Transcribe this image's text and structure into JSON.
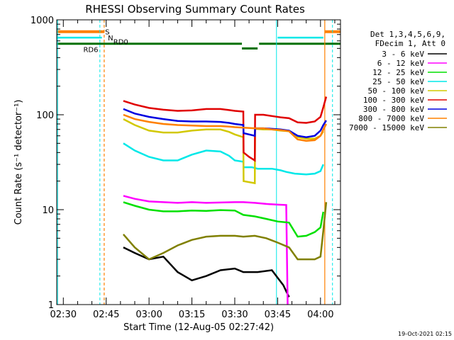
{
  "chart_data": {
    "type": "line",
    "title": "RHESSI Observing Summary Count Rates",
    "xlabel": "Start Time (12-Aug-05 02:27:42)",
    "ylabel": "Count Rate (s⁻¹ detector⁻¹)",
    "y_scale": "log",
    "ylim": [
      1,
      1000
    ],
    "y_ticks": [
      "1",
      "10",
      "100",
      "1000"
    ],
    "x_ticks": [
      "02:30",
      "02:45",
      "03:00",
      "03:15",
      "03:30",
      "03:45",
      "04:00"
    ],
    "x_tick_minutes": [
      150,
      165,
      180,
      195,
      210,
      225,
      240
    ],
    "xlim_minutes": [
      147.7,
      247
    ],
    "legend_header": [
      "Det 1,3,4,5,6,9,",
      "FDecim 1, Att 0"
    ],
    "legend_position": "right",
    "series": [
      {
        "name": "3 - 6 keV",
        "color": "#000000",
        "points": [
          [
            171,
            4
          ],
          [
            175,
            3.5
          ],
          [
            180,
            3
          ],
          [
            185,
            3.2
          ],
          [
            190,
            2.2
          ],
          [
            195,
            1.8
          ],
          [
            200,
            2
          ],
          [
            205,
            2.3
          ],
          [
            210,
            2.4
          ],
          [
            213,
            2.2
          ],
          [
            218,
            2.2
          ],
          [
            223,
            2.3
          ],
          [
            227,
            1.6
          ],
          [
            229,
            1.2
          ]
        ]
      },
      {
        "name": "6 - 12 keV",
        "color": "#ff00ff",
        "points": [
          [
            171,
            14
          ],
          [
            175,
            13
          ],
          [
            180,
            12.2
          ],
          [
            185,
            12
          ],
          [
            190,
            11.8
          ],
          [
            195,
            12
          ],
          [
            200,
            11.8
          ],
          [
            205,
            11.9
          ],
          [
            210,
            12
          ],
          [
            213,
            12
          ],
          [
            217,
            11.8
          ],
          [
            221,
            11.5
          ],
          [
            225,
            11.3
          ],
          [
            228,
            11.2
          ],
          [
            228.5,
            1
          ]
        ]
      },
      {
        "name": "12 - 25 keV",
        "color": "#00e000",
        "points": [
          [
            171,
            12
          ],
          [
            175,
            11
          ],
          [
            180,
            10
          ],
          [
            185,
            9.6
          ],
          [
            190,
            9.6
          ],
          [
            195,
            9.8
          ],
          [
            200,
            9.7
          ],
          [
            205,
            9.9
          ],
          [
            210,
            9.8
          ],
          [
            213,
            8.8
          ],
          [
            217,
            8.5
          ],
          [
            221,
            8
          ],
          [
            225,
            7.5
          ],
          [
            229,
            7.3
          ],
          [
            232,
            5.2
          ],
          [
            235,
            5.3
          ],
          [
            238,
            5.8
          ],
          [
            240,
            6.5
          ],
          [
            241,
            9.5
          ]
        ]
      },
      {
        "name": "25 - 50 keV",
        "color": "#00e8e8",
        "points": [
          [
            171,
            50
          ],
          [
            175,
            42
          ],
          [
            180,
            36
          ],
          [
            185,
            33
          ],
          [
            190,
            33
          ],
          [
            195,
            38
          ],
          [
            200,
            42
          ],
          [
            205,
            41
          ],
          [
            208,
            37
          ],
          [
            210,
            33
          ],
          [
            213,
            32
          ],
          [
            213.1,
            28
          ],
          [
            216,
            28
          ],
          [
            218,
            27
          ],
          [
            220,
            27
          ],
          [
            223,
            27
          ],
          [
            226,
            26
          ],
          [
            228,
            25
          ],
          [
            231,
            24
          ],
          [
            235,
            23.5
          ],
          [
            238,
            24
          ],
          [
            240,
            25.5
          ],
          [
            241,
            30
          ]
        ]
      },
      {
        "name": "50 - 100 keV",
        "color": "#d2c800",
        "points": [
          [
            171,
            90
          ],
          [
            175,
            78
          ],
          [
            180,
            68
          ],
          [
            185,
            65
          ],
          [
            190,
            65
          ],
          [
            195,
            68
          ],
          [
            200,
            70
          ],
          [
            205,
            70
          ],
          [
            208,
            66
          ],
          [
            210,
            62
          ],
          [
            213,
            58
          ],
          [
            213.1,
            20
          ],
          [
            217,
            19
          ],
          [
            217.1,
            71
          ],
          [
            220,
            70
          ],
          [
            223,
            70
          ],
          [
            226,
            68
          ],
          [
            229,
            67
          ],
          [
            232,
            58
          ],
          [
            235,
            56
          ],
          [
            238,
            56
          ],
          [
            240,
            60
          ],
          [
            241,
            67
          ]
        ]
      },
      {
        "name": "100 - 300 keV",
        "color": "#e00000",
        "points": [
          [
            171,
            140
          ],
          [
            175,
            128
          ],
          [
            180,
            118
          ],
          [
            185,
            113
          ],
          [
            190,
            110
          ],
          [
            195,
            111
          ],
          [
            200,
            115
          ],
          [
            205,
            115
          ],
          [
            208,
            112
          ],
          [
            210,
            110
          ],
          [
            213,
            108
          ],
          [
            213.1,
            40
          ],
          [
            215,
            36
          ],
          [
            217,
            33
          ],
          [
            217.1,
            100
          ],
          [
            220,
            100
          ],
          [
            223,
            97
          ],
          [
            226,
            94
          ],
          [
            229,
            92
          ],
          [
            232,
            83
          ],
          [
            235,
            82
          ],
          [
            238,
            85
          ],
          [
            240,
            95
          ],
          [
            241,
            120
          ],
          [
            242,
            155
          ]
        ]
      },
      {
        "name": "300 - 800 keV",
        "color": "#0000e0",
        "points": [
          [
            171,
            115
          ],
          [
            175,
            103
          ],
          [
            180,
            95
          ],
          [
            185,
            90
          ],
          [
            190,
            86
          ],
          [
            195,
            85
          ],
          [
            200,
            85
          ],
          [
            205,
            84
          ],
          [
            208,
            82
          ],
          [
            210,
            80
          ],
          [
            213,
            78
          ],
          [
            213.1,
            64
          ],
          [
            217,
            60
          ],
          [
            217.1,
            72
          ],
          [
            220,
            72
          ],
          [
            223,
            71
          ],
          [
            226,
            70
          ],
          [
            229,
            68
          ],
          [
            232,
            60
          ],
          [
            235,
            58
          ],
          [
            238,
            60
          ],
          [
            240,
            68
          ],
          [
            241,
            78
          ],
          [
            242,
            87
          ]
        ]
      },
      {
        "name": "800 - 7000 keV",
        "color": "#ff8000",
        "points": [
          [
            171,
            100
          ],
          [
            175,
            90
          ],
          [
            180,
            84
          ],
          [
            185,
            80
          ],
          [
            190,
            78
          ],
          [
            195,
            77
          ],
          [
            200,
            76
          ],
          [
            205,
            76
          ],
          [
            208,
            75
          ],
          [
            210,
            74
          ],
          [
            213,
            73
          ],
          [
            217,
            72
          ],
          [
            220,
            72
          ],
          [
            223,
            70
          ],
          [
            226,
            69
          ],
          [
            229,
            67
          ],
          [
            232,
            55
          ],
          [
            235,
            53
          ],
          [
            238,
            54
          ],
          [
            240,
            60
          ],
          [
            241,
            70
          ],
          [
            242,
            80
          ]
        ]
      },
      {
        "name": "7000 - 15000 keV",
        "color": "#808000",
        "points": [
          [
            171,
            5.5
          ],
          [
            175,
            4
          ],
          [
            180,
            3
          ],
          [
            185,
            3.5
          ],
          [
            190,
            4.2
          ],
          [
            195,
            4.8
          ],
          [
            200,
            5.2
          ],
          [
            205,
            5.3
          ],
          [
            210,
            5.3
          ],
          [
            213,
            5.2
          ],
          [
            217,
            5.3
          ],
          [
            221,
            5
          ],
          [
            225,
            4.5
          ],
          [
            229,
            4
          ],
          [
            232,
            3
          ],
          [
            235,
            3
          ],
          [
            238,
            3
          ],
          [
            240,
            3.2
          ],
          [
            241,
            6
          ],
          [
            242,
            12
          ]
        ]
      }
    ],
    "flags": [
      {
        "label": "S",
        "color": "#ff8000",
        "rate": 750
      },
      {
        "label": "N",
        "color": "#00e8e8",
        "rate": 650
      },
      {
        "label": "RD0",
        "color": "#007000",
        "rate": 590
      },
      {
        "label": "RD6",
        "color": "#007000",
        "rate": 560
      }
    ],
    "footer_date": "19-Oct-2021 02:15"
  }
}
